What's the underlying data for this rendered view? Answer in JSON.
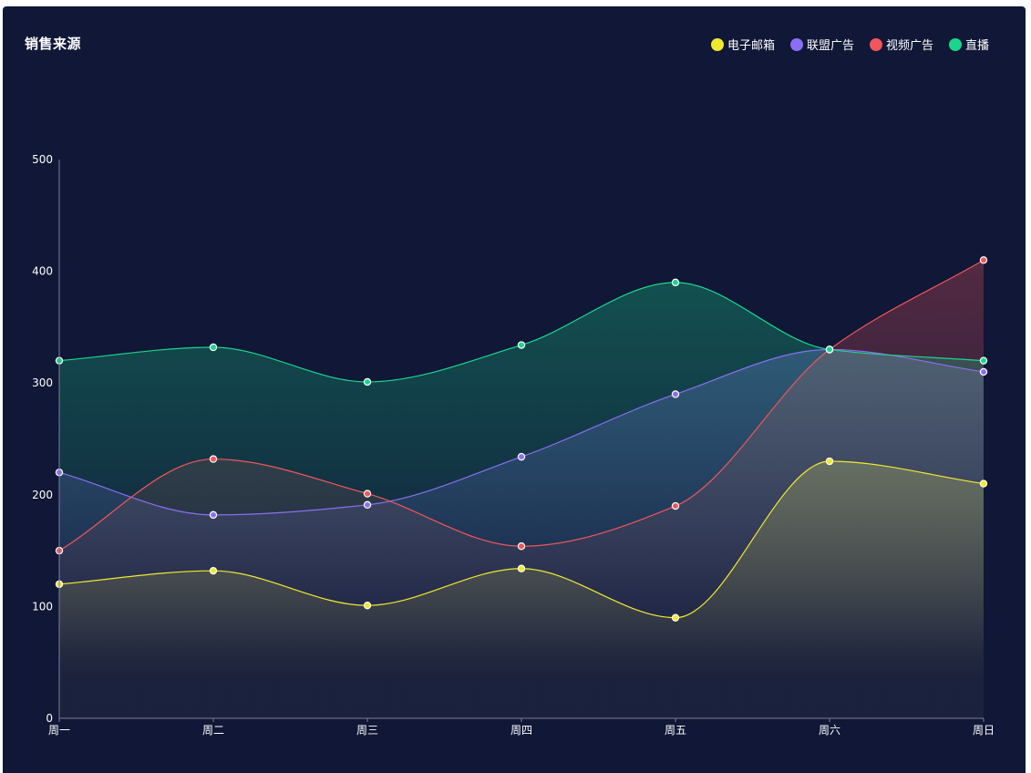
{
  "title": "销售来源",
  "colors": {
    "background": "#101737",
    "axis": "#7b7f99"
  },
  "chart_data": {
    "type": "area",
    "title": "销售来源",
    "categories": [
      "周一",
      "周二",
      "周三",
      "周四",
      "周五",
      "周六",
      "周日"
    ],
    "ylim": [
      0,
      500
    ],
    "yticks": [
      0,
      100,
      200,
      300,
      400,
      500
    ],
    "grid": false,
    "legend_position": "top-right",
    "series": [
      {
        "name": "电子邮箱",
        "color": "#f0ea2e",
        "values": [
          120,
          132,
          101,
          134,
          90,
          230,
          210
        ]
      },
      {
        "name": "联盟广告",
        "color": "#8a6ff3",
        "values": [
          220,
          182,
          191,
          234,
          290,
          330,
          310
        ]
      },
      {
        "name": "视频广告",
        "color": "#f0565a",
        "values": [
          150,
          232,
          201,
          154,
          190,
          330,
          410
        ]
      },
      {
        "name": "直播",
        "color": "#1bd68a",
        "values": [
          320,
          332,
          301,
          334,
          390,
          330,
          320
        ]
      }
    ]
  }
}
